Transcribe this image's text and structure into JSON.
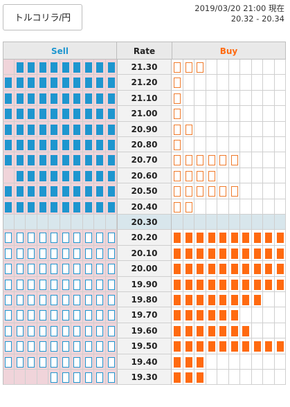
{
  "header": {
    "pair_button": "トルコリラ/円",
    "timestamp": "2019/03/20 21:00 現在",
    "price_range": "20.32 - 20.34"
  },
  "columns": {
    "sell": "Sell",
    "rate": "Rate",
    "buy": "Buy"
  },
  "colors": {
    "sell_accent": "#1e96cf",
    "buy_accent": "#ff6a10",
    "sell_row_bg": "#f0d4da",
    "current_row_bg": "#d8e6ec"
  },
  "current_rate": "20.30",
  "rows": [
    {
      "rate": "21.30",
      "sell_fill": "solid",
      "sell": 9,
      "buy_fill": "outline",
      "buy": 3
    },
    {
      "rate": "21.20",
      "sell_fill": "solid",
      "sell": 10,
      "buy_fill": "outline",
      "buy": 1
    },
    {
      "rate": "21.10",
      "sell_fill": "solid",
      "sell": 10,
      "buy_fill": "outline",
      "buy": 1
    },
    {
      "rate": "21.00",
      "sell_fill": "solid",
      "sell": 10,
      "buy_fill": "outline",
      "buy": 1
    },
    {
      "rate": "20.90",
      "sell_fill": "solid",
      "sell": 10,
      "buy_fill": "outline",
      "buy": 2
    },
    {
      "rate": "20.80",
      "sell_fill": "solid",
      "sell": 10,
      "buy_fill": "outline",
      "buy": 1
    },
    {
      "rate": "20.70",
      "sell_fill": "solid",
      "sell": 10,
      "buy_fill": "outline",
      "buy": 6
    },
    {
      "rate": "20.60",
      "sell_fill": "solid",
      "sell": 9,
      "buy_fill": "outline",
      "buy": 4
    },
    {
      "rate": "20.50",
      "sell_fill": "solid",
      "sell": 10,
      "buy_fill": "outline",
      "buy": 6
    },
    {
      "rate": "20.40",
      "sell_fill": "solid",
      "sell": 10,
      "buy_fill": "outline",
      "buy": 2
    },
    {
      "rate": "20.30",
      "sell_fill": "none",
      "sell": 0,
      "buy_fill": "none",
      "buy": 0,
      "current": true
    },
    {
      "rate": "20.20",
      "sell_fill": "outline",
      "sell": 10,
      "buy_fill": "solid",
      "buy": 10
    },
    {
      "rate": "20.10",
      "sell_fill": "outline",
      "sell": 10,
      "buy_fill": "solid",
      "buy": 10
    },
    {
      "rate": "20.00",
      "sell_fill": "outline",
      "sell": 10,
      "buy_fill": "solid",
      "buy": 10
    },
    {
      "rate": "19.90",
      "sell_fill": "outline",
      "sell": 10,
      "buy_fill": "solid",
      "buy": 10
    },
    {
      "rate": "19.80",
      "sell_fill": "outline",
      "sell": 10,
      "buy_fill": "solid",
      "buy": 8
    },
    {
      "rate": "19.70",
      "sell_fill": "outline",
      "sell": 10,
      "buy_fill": "solid",
      "buy": 6
    },
    {
      "rate": "19.60",
      "sell_fill": "outline",
      "sell": 10,
      "buy_fill": "solid",
      "buy": 7
    },
    {
      "rate": "19.50",
      "sell_fill": "outline",
      "sell": 10,
      "buy_fill": "solid",
      "buy": 10
    },
    {
      "rate": "19.40",
      "sell_fill": "outline",
      "sell": 10,
      "buy_fill": "solid",
      "buy": 3
    },
    {
      "rate": "19.30",
      "sell_fill": "outline",
      "sell": 6,
      "buy_fill": "solid",
      "buy": 3
    }
  ]
}
